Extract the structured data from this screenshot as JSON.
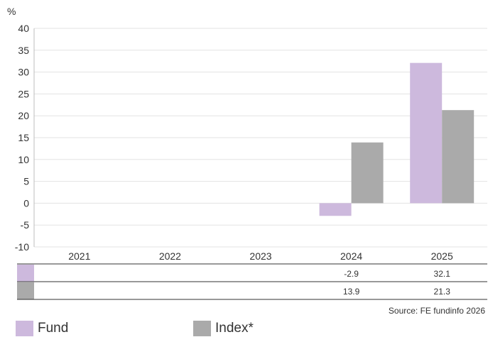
{
  "chart_data": {
    "type": "bar",
    "ylabel": "%",
    "ylim": [
      -10,
      40
    ],
    "yticks": [
      40,
      35,
      30,
      25,
      20,
      15,
      10,
      5,
      0,
      -5,
      -10
    ],
    "grid": true,
    "categories": [
      "2021",
      "2022",
      "2023",
      "2024",
      "2025"
    ],
    "series": [
      {
        "name": "Fund",
        "color": "#cdb9dd",
        "values": [
          null,
          null,
          null,
          -2.9,
          32.1
        ]
      },
      {
        "name": "Index*",
        "color": "#aaaaaa",
        "values": [
          null,
          null,
          null,
          13.9,
          21.3
        ]
      }
    ],
    "table": {
      "rows": [
        {
          "series": "Fund",
          "cells": [
            "",
            "",
            "",
            "-2.9",
            "32.1"
          ]
        },
        {
          "series": "Index*",
          "cells": [
            "",
            "",
            "",
            "13.9",
            "21.3"
          ]
        }
      ]
    },
    "source": "Source: FE fundinfo 2026",
    "legend_position": "bottom-left"
  }
}
